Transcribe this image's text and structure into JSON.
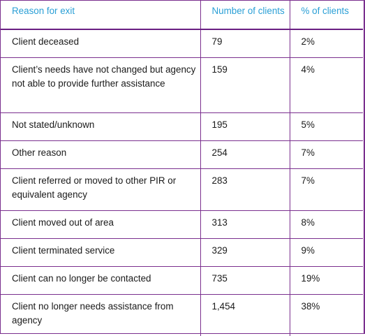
{
  "table": {
    "headers": [
      "Reason for exit",
      "Number of clients",
      "% of clients"
    ],
    "rows": [
      {
        "reason": "Client deceased",
        "number": "79",
        "percent": "2%"
      },
      {
        "reason": "Client’s needs have not changed but agency not able to provide further assistance",
        "number": "159",
        "percent": "4%"
      },
      {
        "reason": "Not stated/unknown",
        "number": "195",
        "percent": "5%"
      },
      {
        "reason": "Other reason",
        "number": "254",
        "percent": "7%"
      },
      {
        "reason": "Client referred or moved to other PIR or equivalent agency",
        "number": "283",
        "percent": "7%"
      },
      {
        "reason": "Client moved out of area",
        "number": "313",
        "percent": "8%"
      },
      {
        "reason": "Client terminated service",
        "number": "329",
        "percent": "9%"
      },
      {
        "reason": "Client can no longer be contacted",
        "number": "735",
        "percent": "19%"
      },
      {
        "reason": "Client no longer needs assistance from agency",
        "number": "1,454",
        "percent": "38%"
      }
    ]
  },
  "colors": {
    "border": "#7a2f8e",
    "header_text": "#2a9fd6"
  }
}
